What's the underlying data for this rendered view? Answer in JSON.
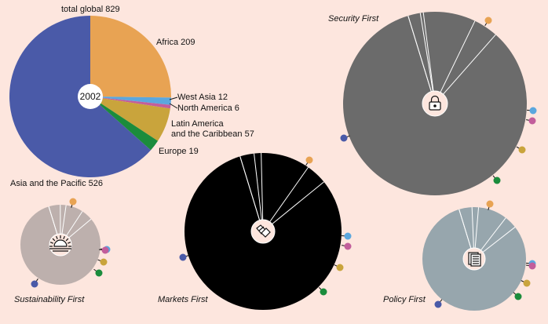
{
  "chart_data": [
    {
      "type": "pie",
      "center_label": "2002",
      "total_label": "total global 829",
      "slices": [
        {
          "name": "Africa",
          "value": 209,
          "label": "Africa 209",
          "color": "#e8a353"
        },
        {
          "name": "West Asia",
          "value": 12,
          "label": "West Asia 12",
          "color": "#5ba7de"
        },
        {
          "name": "North America",
          "value": 6,
          "label": "North America 6",
          "color": "#c25e9b"
        },
        {
          "name": "Latin America and the Caribbean",
          "value": 57,
          "label_lines": [
            "Latin America",
            "and the Caribbean 57"
          ],
          "color": "#c9a43c"
        },
        {
          "name": "Europe",
          "value": 19,
          "label": "Europe 19",
          "color": "#1b8c3c"
        },
        {
          "name": "Asia and the Pacific",
          "value": 526,
          "label": "Asia and the Pacific 526",
          "color": "#4a5aa8"
        }
      ]
    },
    {
      "type": "pie",
      "title": "Security First",
      "icon": "padlock-icon",
      "color": "#6b6b6b",
      "values": [
        0,
        4,
        1,
        17,
        8,
        155
      ]
    },
    {
      "type": "pie",
      "title": "Sustainability First",
      "icon": "sun-icon",
      "color": "#bdb0ad",
      "values": [
        0,
        4,
        2,
        6,
        4,
        70
      ]
    },
    {
      "type": "pie",
      "title": "Markets First",
      "icon": "hands-icon",
      "color": "#000000",
      "values": [
        0,
        4,
        2,
        14,
        6,
        112
      ]
    },
    {
      "type": "pie",
      "title": "Policy First",
      "icon": "document-icon",
      "color": "#97a6ad",
      "values": [
        0,
        4,
        2,
        9,
        4,
        80
      ]
    }
  ],
  "region_colors": [
    "#e8a353",
    "#5ba7de",
    "#c25e9b",
    "#c9a43c",
    "#1b8c3c",
    "#4a5aa8"
  ]
}
